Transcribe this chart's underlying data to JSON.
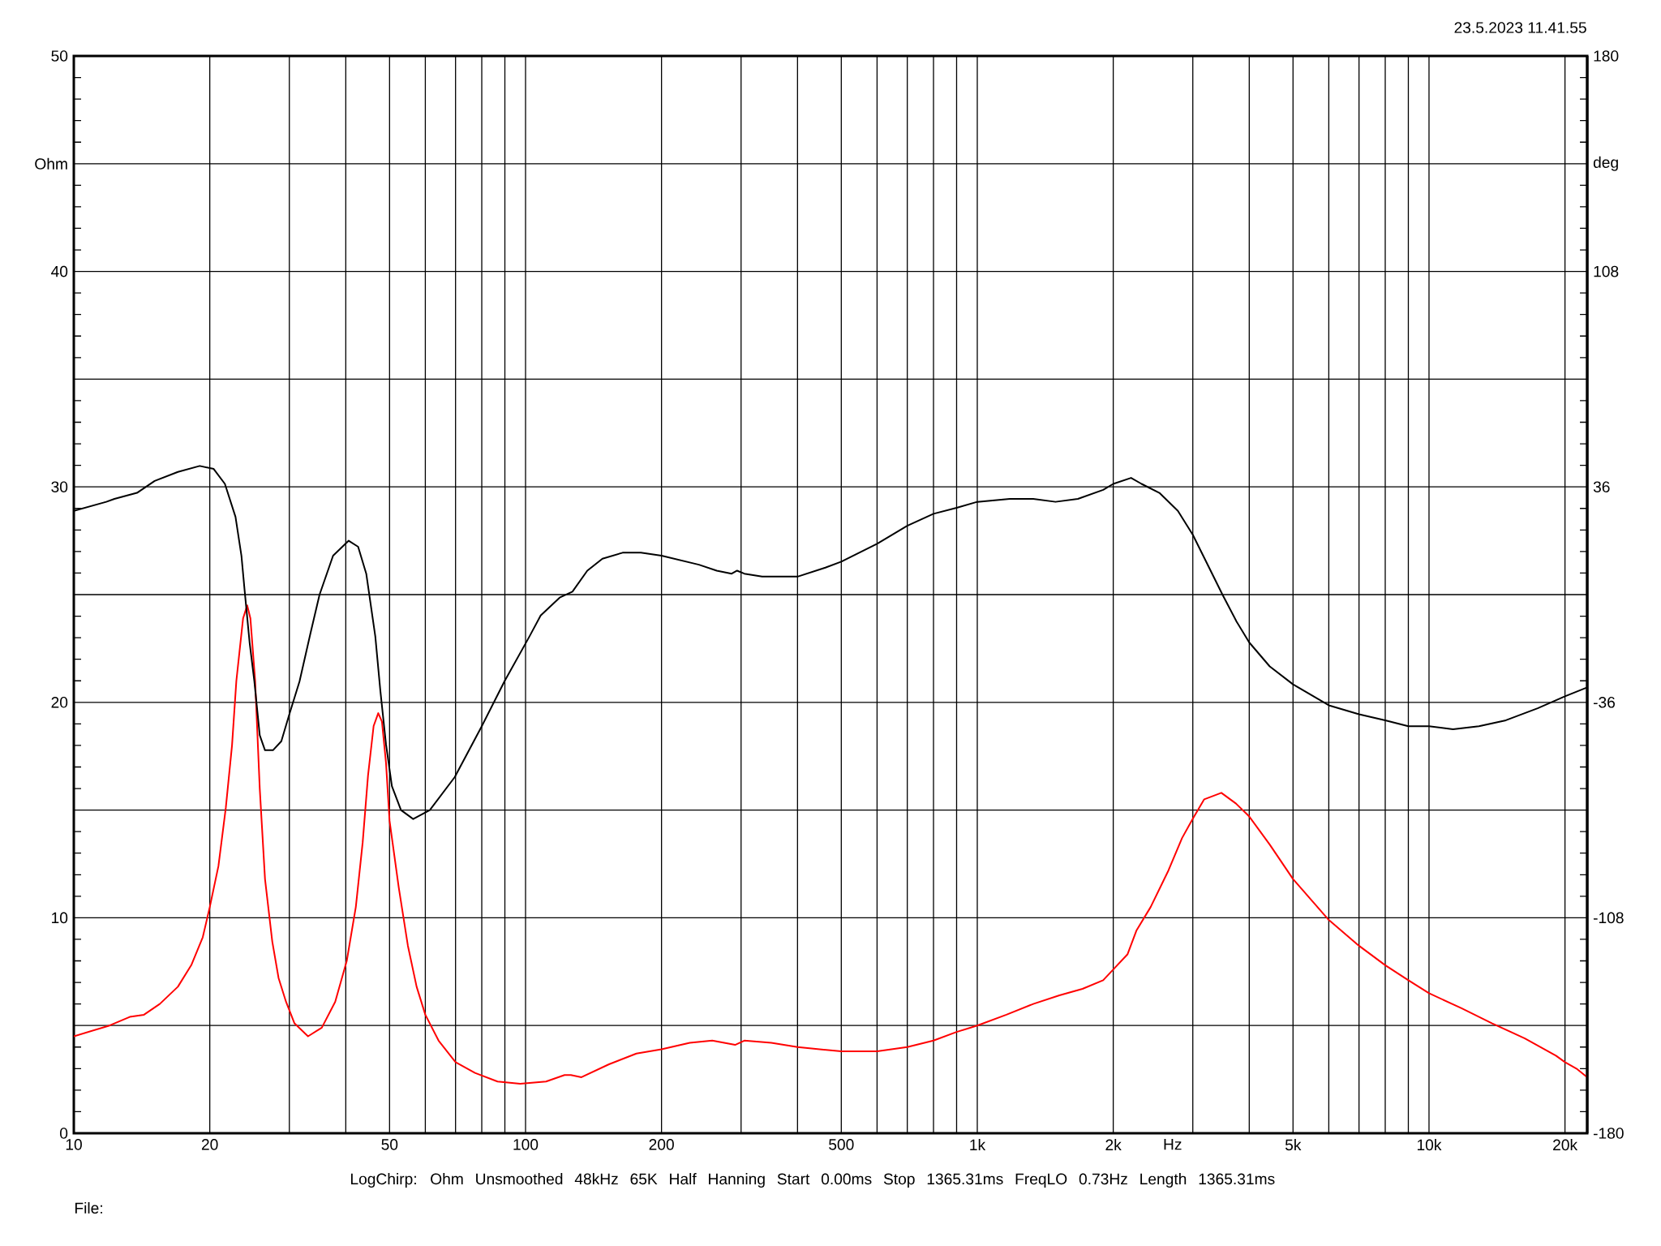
{
  "chart_data": {
    "type": "line",
    "xlabel": "Hz",
    "ylabel": "Ohm",
    "y2label": "deg",
    "annotations": [
      "23.5.2023 11.41.55",
      "LogChirp: Ohm Unsmoothed 48kHz 65K Half Hanning Start 0.00ms Stop 1365.31ms FreqLO 0.73Hz Length 1365.31ms",
      "File:"
    ],
    "log": "x",
    "grid": true,
    "xlim": [
      10,
      22400
    ],
    "xticks": [
      10,
      20,
      {
        "value": 30,
        "label": null
      },
      {
        "value": 40,
        "label": null
      },
      50,
      {
        "value": 60,
        "label": null
      },
      {
        "value": 70,
        "label": null
      },
      {
        "value": 80,
        "label": null
      },
      {
        "value": 90,
        "label": null
      },
      100,
      200,
      {
        "value": 300,
        "label": null
      },
      {
        "value": 400,
        "label": null
      },
      500,
      {
        "value": 600,
        "label": null
      },
      {
        "value": 700,
        "label": null
      },
      {
        "value": 800,
        "label": null
      },
      {
        "value": 900,
        "label": null
      },
      {
        "value": 1000,
        "label": "1k"
      },
      {
        "value": 2000,
        "label": "2k"
      },
      {
        "value": 3000,
        "label": null
      },
      {
        "value": 4000,
        "label": null
      },
      {
        "value": 5000,
        "label": "5k"
      },
      {
        "value": 6000,
        "label": null
      },
      {
        "value": 7000,
        "label": null
      },
      {
        "value": 8000,
        "label": null
      },
      {
        "value": 9000,
        "label": null
      },
      {
        "value": 10000,
        "label": "10k"
      },
      {
        "value": 20000,
        "label": "20k"
      }
    ],
    "ylim": [
      0,
      50
    ],
    "yticks": [
      0,
      {
        "value": 5,
        "label": null
      },
      10,
      {
        "value": 15,
        "label": null
      },
      20,
      {
        "value": 25,
        "label": null
      },
      30,
      {
        "value": 35,
        "label": null
      },
      40,
      {
        "value": 45,
        "label": null
      },
      50
    ],
    "y2lim": [
      -180,
      180
    ],
    "y2ticks": [
      -180,
      -108,
      -36,
      36,
      108,
      180
    ],
    "series": [
      {
        "color": "#ff0000",
        "x": [
          10,
          12,
          13.3,
          14.3,
          15.5,
          17,
          18.2,
          19.3,
          20,
          20.9,
          21.7,
          22.4,
          22.9,
          23.7,
          24.2,
          24.6,
          25.2,
          25.8,
          26.5,
          27.5,
          28.4,
          29.5,
          30.8,
          33,
          35.4,
          37.9,
          40.2,
          42.1,
          43.6,
          44.8,
          46.1,
          47.2,
          48.1,
          49.1,
          50,
          52.4,
          54.9,
          57.4,
          60,
          64.2,
          70,
          77.3,
          86.7,
          97.3,
          111,
          122,
          126,
          133,
          153,
          176,
          200,
          231,
          259,
          291,
          305,
          350,
          400,
          500,
          600,
          700,
          800,
          900,
          1000,
          1160,
          1330,
          1520,
          1710,
          1900,
          2000,
          2150,
          2250,
          2420,
          2650,
          2840,
          3000,
          3180,
          3470,
          3740,
          4000,
          4440,
          5000,
          6000,
          7000,
          8000,
          9000,
          10000,
          11800,
          13800,
          16300,
          19100,
          20000,
          21200,
          22400
        ],
        "values": [
          4.5,
          5.0,
          5.4,
          5.5,
          6.0,
          6.8,
          7.8,
          9.1,
          10.5,
          12.4,
          15.1,
          18.0,
          21.0,
          23.9,
          24.5,
          23.9,
          21.0,
          16.0,
          11.8,
          8.9,
          7.2,
          6.1,
          5.1,
          4.5,
          4.9,
          6.1,
          8.0,
          10.5,
          13.5,
          16.6,
          18.9,
          19.5,
          19.1,
          17.2,
          14.5,
          11.4,
          8.7,
          6.8,
          5.5,
          4.3,
          3.3,
          2.8,
          2.4,
          2.3,
          2.4,
          2.7,
          2.7,
          2.6,
          3.2,
          3.7,
          3.9,
          4.2,
          4.3,
          4.1,
          4.3,
          4.2,
          4.0,
          3.8,
          3.8,
          4.0,
          4.3,
          4.7,
          5.0,
          5.5,
          6.0,
          6.4,
          6.7,
          7.1,
          7.6,
          8.3,
          9.4,
          10.5,
          12.2,
          13.7,
          14.6,
          15.5,
          15.8,
          15.3,
          14.7,
          13.4,
          11.8,
          9.9,
          8.7,
          7.8,
          7.1,
          6.5,
          5.8,
          5.1,
          4.4,
          3.6,
          3.3,
          3.0,
          2.6
        ]
      },
      {
        "color": "#000000",
        "axis": "y2",
        "x": [
          10,
          11.8,
          12.3,
          13.8,
          15.1,
          17,
          19,
          20.4,
          21.6,
          22.8,
          23.5,
          23.9,
          24.5,
          25.1,
          25.8,
          26.5,
          27.6,
          28.8,
          30,
          31.6,
          33.4,
          35,
          37.5,
          40.6,
          42.6,
          44.4,
          46.5,
          47.7,
          49.1,
          50.6,
          53,
          56.4,
          61.4,
          69.7,
          80,
          89.8,
          102,
          108,
          119,
          127,
          137,
          148,
          164,
          180,
          200,
          242,
          265,
          286,
          294,
          305,
          334,
          358,
          400,
          461,
          500,
          600,
          700,
          800,
          900,
          1000,
          1180,
          1330,
          1490,
          1670,
          1900,
          2000,
          2190,
          2310,
          2530,
          2780,
          3000,
          3260,
          3490,
          3750,
          4000,
          4440,
          5000,
          6000,
          7000,
          8000,
          9000,
          10000,
          11300,
          12900,
          14800,
          17400,
          20000,
          22400
        ],
        "values": [
          28,
          31,
          32,
          34,
          38,
          41,
          43,
          42,
          37,
          26,
          13,
          1,
          -16,
          -29,
          -47,
          -52,
          -52,
          -49,
          -40,
          -29,
          -13,
          0,
          13,
          18,
          16,
          7,
          -14,
          -32,
          -50,
          -64,
          -72,
          -75,
          -72,
          -61,
          -44,
          -29,
          -14,
          -7,
          -1,
          1,
          8,
          12,
          14,
          14,
          13,
          10,
          8,
          7,
          8,
          7,
          6,
          6,
          6,
          9,
          11,
          17,
          23,
          27,
          29,
          31,
          32,
          32,
          31,
          32,
          35,
          37,
          39,
          37,
          34,
          28,
          20,
          9,
          0,
          -9,
          -16,
          -24,
          -30,
          -37,
          -40,
          -42,
          -44,
          -44,
          -45,
          -44,
          -42,
          -38,
          -34,
          -31
        ]
      }
    ]
  }
}
